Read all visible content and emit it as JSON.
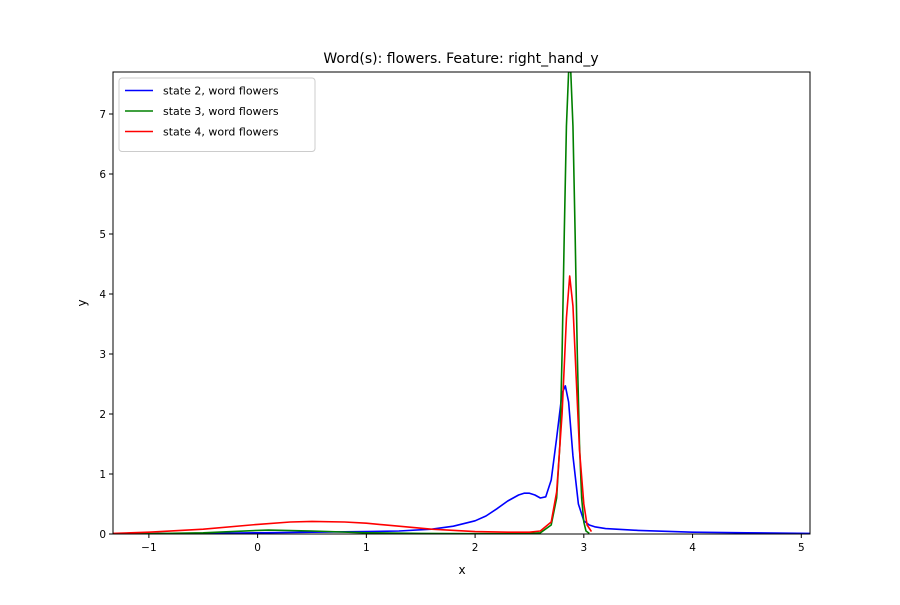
{
  "chart_data": {
    "type": "line",
    "title": "Word(s): flowers. Feature: right_hand_y",
    "xlabel": "x",
    "ylabel": "y",
    "xlim": [
      -1.33,
      5.08
    ],
    "ylim": [
      0,
      7.7
    ],
    "x_ticks": [
      -1,
      0,
      1,
      2,
      3,
      4,
      5
    ],
    "y_ticks": [
      0,
      1,
      2,
      3,
      4,
      5,
      6,
      7
    ],
    "grid": false,
    "legend_position": "top-left",
    "series": [
      {
        "name": "state 2, word flowers",
        "color": "#0000ff",
        "x": [
          -1.33,
          -1.0,
          -0.5,
          0.0,
          0.5,
          1.0,
          1.3,
          1.6,
          1.8,
          2.0,
          2.1,
          2.2,
          2.3,
          2.4,
          2.45,
          2.5,
          2.55,
          2.6,
          2.65,
          2.7,
          2.75,
          2.8,
          2.83,
          2.86,
          2.9,
          2.95,
          3.0,
          3.05,
          3.1,
          3.2,
          3.5,
          4.0,
          4.5,
          5.08
        ],
        "y": [
          0.0,
          0.005,
          0.01,
          0.02,
          0.03,
          0.04,
          0.05,
          0.08,
          0.13,
          0.22,
          0.3,
          0.42,
          0.55,
          0.65,
          0.68,
          0.68,
          0.65,
          0.6,
          0.62,
          0.9,
          1.6,
          2.35,
          2.47,
          2.2,
          1.3,
          0.5,
          0.22,
          0.15,
          0.12,
          0.09,
          0.06,
          0.03,
          0.02,
          0.01
        ]
      },
      {
        "name": "state 3, word flowers",
        "color": "#008000",
        "x": [
          -1.33,
          -1.0,
          -0.5,
          0.0,
          0.1,
          0.5,
          1.0,
          1.5,
          2.0,
          2.3,
          2.5,
          2.6,
          2.7,
          2.75,
          2.78,
          2.8,
          2.82,
          2.84,
          2.86,
          2.88,
          2.9,
          2.92,
          2.94,
          2.96,
          2.98,
          3.0,
          3.02,
          3.05
        ],
        "y": [
          0.0,
          0.005,
          0.02,
          0.06,
          0.065,
          0.05,
          0.02,
          0.01,
          0.005,
          0.005,
          0.01,
          0.02,
          0.15,
          0.6,
          1.5,
          3.0,
          5.0,
          6.8,
          7.7,
          7.7,
          6.8,
          5.0,
          3.0,
          1.5,
          0.6,
          0.2,
          0.05,
          0.01
        ]
      },
      {
        "name": "state 4, word flowers",
        "color": "#ff0000",
        "x": [
          -1.33,
          -1.0,
          -0.5,
          0.0,
          0.3,
          0.5,
          0.8,
          1.0,
          1.3,
          1.6,
          2.0,
          2.3,
          2.5,
          2.6,
          2.7,
          2.75,
          2.8,
          2.84,
          2.87,
          2.9,
          2.93,
          2.96,
          3.0,
          3.03,
          3.07
        ],
        "y": [
          0.01,
          0.03,
          0.08,
          0.16,
          0.2,
          0.21,
          0.2,
          0.18,
          0.13,
          0.08,
          0.04,
          0.03,
          0.03,
          0.05,
          0.2,
          0.7,
          2.0,
          3.6,
          4.3,
          3.8,
          2.6,
          1.4,
          0.5,
          0.15,
          0.04
        ]
      }
    ]
  }
}
